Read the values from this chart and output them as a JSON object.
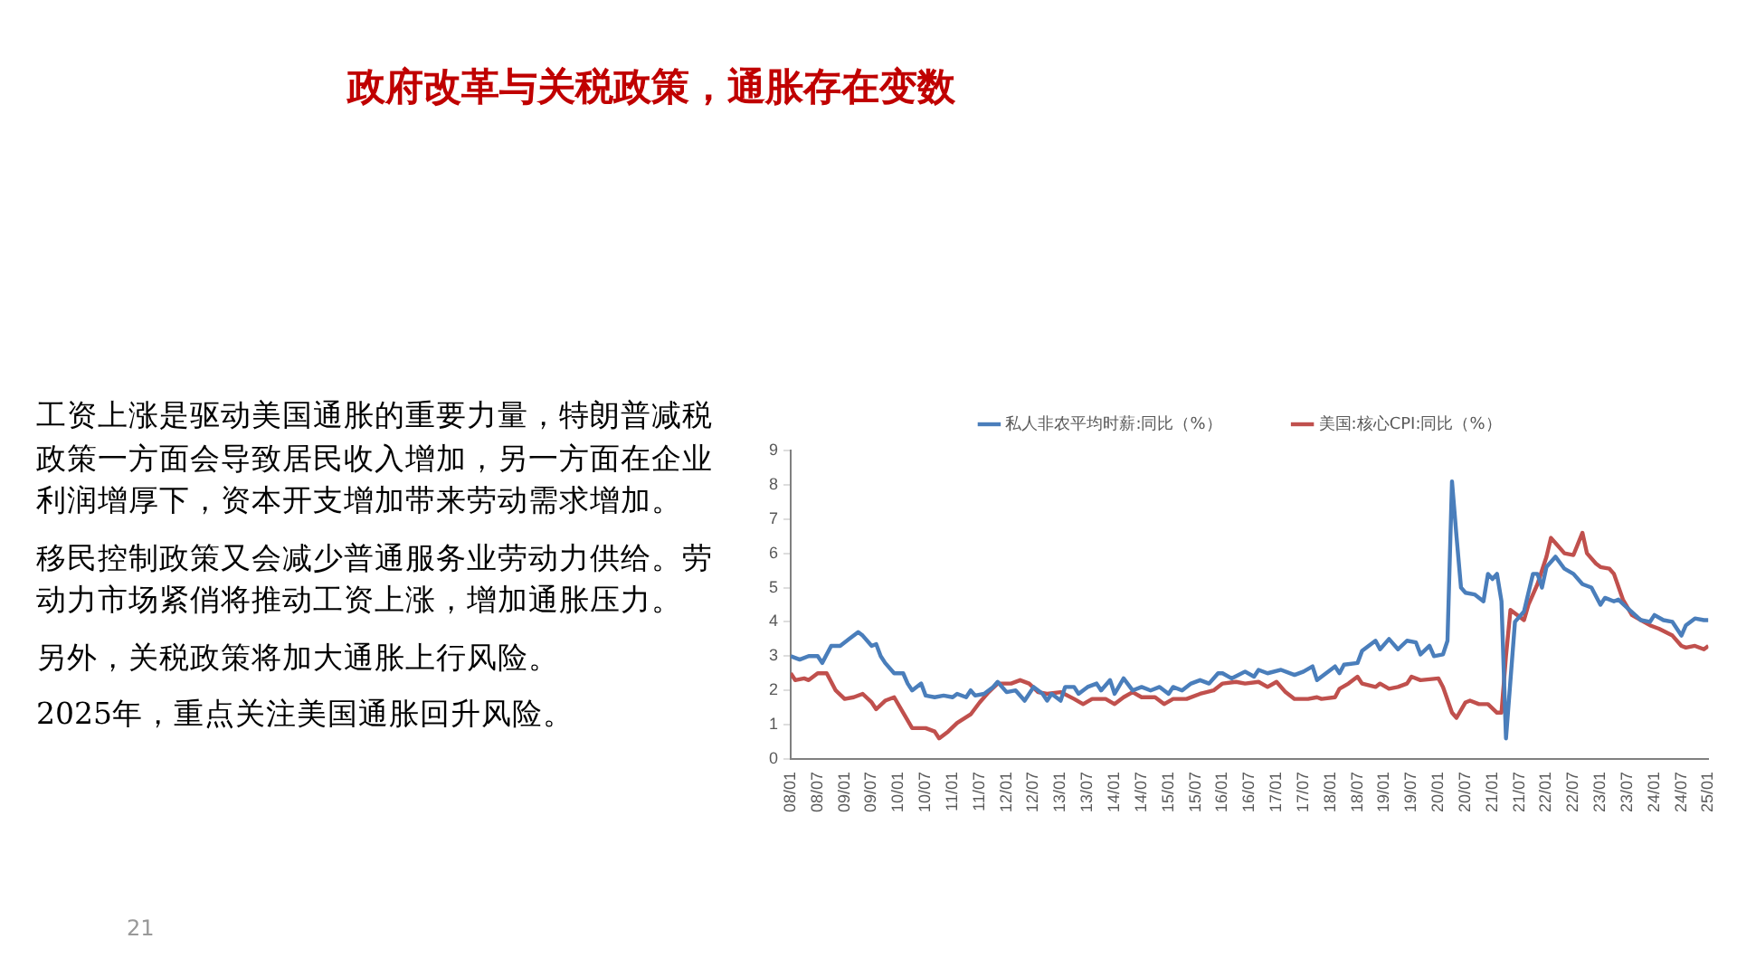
{
  "chart_data": {
    "type": "line",
    "title": "政府改革与关税政策，通胀存在变数",
    "annotations": [
      "工资上涨是驱动美国通胀的重要力量，特朗普减税政策一方面会导致居民收入增加，另一方面在企业利润增厚下，资本开支增加带来劳动需求增加。",
      "移民控制政策又会减少普通服务业劳动力供给。劳动力市场紧俏将推动工资上涨，增加通胀压力。",
      "另外，关税政策将加大通胀上行风险。",
      "2025年，重点关注美国通胀回升风险。",
      "21"
    ],
    "series": [
      {
        "name": "私人非农平均时薪:同比（%）",
        "color": "#4a7ebb",
        "x": [
          "2008-01",
          "2008-03",
          "2008-05",
          "2008-07",
          "2008-08",
          "2008-10",
          "2008-12",
          "2009-02",
          "2009-04",
          "2009-05",
          "2009-07",
          "2009-08",
          "2009-09",
          "2009-10",
          "2009-12",
          "2010-02",
          "2010-03",
          "2010-04",
          "2010-06",
          "2010-07",
          "2010-09",
          "2010-11",
          "2011-01",
          "2011-02",
          "2011-04",
          "2011-05",
          "2011-06",
          "2011-08",
          "2011-10",
          "2011-11",
          "2012-01",
          "2012-03",
          "2012-05",
          "2012-07",
          "2012-09",
          "2012-10",
          "2012-11",
          "2013-01",
          "2013-02",
          "2013-04",
          "2013-05",
          "2013-07",
          "2013-09",
          "2013-10",
          "2013-12",
          "2014-01",
          "2014-03",
          "2014-05",
          "2014-07",
          "2014-09",
          "2014-11",
          "2015-01",
          "2015-02",
          "2015-04",
          "2015-06",
          "2015-08",
          "2015-10",
          "2015-12",
          "2016-01",
          "2016-03",
          "2016-06",
          "2016-08",
          "2016-09",
          "2016-11",
          "2017-02",
          "2017-05",
          "2017-07",
          "2017-09",
          "2017-10",
          "2018-01",
          "2018-02",
          "2018-03",
          "2018-04",
          "2018-07",
          "2018-08",
          "2018-11",
          "2018-12",
          "2019-02",
          "2019-04",
          "2019-06",
          "2019-08",
          "2019-09",
          "2019-11",
          "2019-12",
          "2020-02",
          "2020-03",
          "2020-04",
          "2020-05",
          "2020-06",
          "2020-07",
          "2020-09",
          "2020-11",
          "2020-12",
          "2021-01",
          "2021-02",
          "2021-03",
          "2021-04",
          "2021-06",
          "2021-08",
          "2021-10",
          "2021-11",
          "2021-12",
          "2022-01",
          "2022-03",
          "2022-05",
          "2022-07",
          "2022-09",
          "2022-11",
          "2023-01",
          "2023-02",
          "2023-04",
          "2023-05",
          "2023-07",
          "2023-10",
          "2023-12",
          "2024-01",
          "2024-03",
          "2024-05",
          "2024-07",
          "2024-08",
          "2024-10",
          "2024-12",
          "2025-01"
        ],
        "values": [
          3.0,
          2.9,
          3.0,
          3.0,
          2.8,
          3.3,
          3.3,
          3.5,
          3.7,
          3.6,
          3.3,
          3.35,
          3.0,
          2.8,
          2.5,
          2.5,
          2.2,
          2.0,
          2.2,
          1.85,
          1.8,
          1.85,
          1.8,
          1.9,
          1.8,
          2.0,
          1.85,
          1.9,
          2.1,
          2.25,
          1.95,
          2.0,
          1.7,
          2.1,
          1.9,
          1.7,
          1.9,
          1.7,
          2.1,
          2.1,
          1.9,
          2.1,
          2.2,
          2.0,
          2.3,
          1.9,
          2.35,
          2.0,
          2.1,
          2.0,
          2.1,
          1.9,
          2.1,
          2.0,
          2.2,
          2.3,
          2.2,
          2.5,
          2.5,
          2.35,
          2.55,
          2.4,
          2.6,
          2.5,
          2.6,
          2.45,
          2.55,
          2.7,
          2.3,
          2.6,
          2.7,
          2.5,
          2.75,
          2.8,
          3.15,
          3.45,
          3.2,
          3.5,
          3.2,
          3.45,
          3.4,
          3.05,
          3.3,
          3.0,
          3.05,
          3.45,
          8.1,
          6.5,
          5.0,
          4.85,
          4.8,
          4.6,
          5.4,
          5.25,
          5.4,
          4.6,
          0.6,
          4.0,
          4.3,
          5.4,
          5.4,
          5.0,
          5.6,
          5.9,
          5.55,
          5.4,
          5.1,
          5.0,
          4.5,
          4.7,
          4.6,
          4.65,
          4.4,
          4.05,
          4.0,
          4.2,
          4.05,
          4.0,
          3.6,
          3.9,
          4.1,
          4.05,
          4.05
        ]
      },
      {
        "name": "美国:核心CPI:同比（%）",
        "color": "#c0504d",
        "x": [
          "2008-01",
          "2008-02",
          "2008-04",
          "2008-05",
          "2008-07",
          "2008-09",
          "2008-11",
          "2009-01",
          "2009-03",
          "2009-05",
          "2009-07",
          "2009-08",
          "2009-10",
          "2009-12",
          "2010-02",
          "2010-04",
          "2010-07",
          "2010-09",
          "2010-10",
          "2010-12",
          "2011-02",
          "2011-05",
          "2011-07",
          "2011-09",
          "2011-11",
          "2012-02",
          "2012-04",
          "2012-06",
          "2012-08",
          "2012-10",
          "2013-01",
          "2013-04",
          "2013-06",
          "2013-08",
          "2013-11",
          "2014-01",
          "2014-03",
          "2014-05",
          "2014-07",
          "2014-09",
          "2014-10",
          "2014-12",
          "2015-02",
          "2015-05",
          "2015-08",
          "2015-11",
          "2016-01",
          "2016-04",
          "2016-06",
          "2016-09",
          "2016-11",
          "2017-01",
          "2017-03",
          "2017-05",
          "2017-08",
          "2017-10",
          "2017-11",
          "2018-02",
          "2018-03",
          "2018-05",
          "2018-07",
          "2018-08",
          "2018-11",
          "2018-12",
          "2019-02",
          "2019-04",
          "2019-06",
          "2019-07",
          "2019-09",
          "2020-01",
          "2020-02",
          "2020-04",
          "2020-05",
          "2020-07",
          "2020-08",
          "2020-10",
          "2020-12",
          "2021-02",
          "2021-03",
          "2021-04",
          "2021-05",
          "2021-06",
          "2021-08",
          "2021-09",
          "2021-11",
          "2022-01",
          "2022-02",
          "2022-03",
          "2022-05",
          "2022-07",
          "2022-09",
          "2022-10",
          "2022-12",
          "2023-01",
          "2023-03",
          "2023-04",
          "2023-06",
          "2023-08",
          "2023-10",
          "2023-12",
          "2024-02",
          "2024-05",
          "2024-07",
          "2024-08",
          "2024-10",
          "2024-12",
          "2025-01"
        ],
        "values": [
          2.5,
          2.3,
          2.35,
          2.3,
          2.5,
          2.5,
          2.0,
          1.75,
          1.8,
          1.9,
          1.65,
          1.45,
          1.7,
          1.8,
          1.35,
          0.9,
          0.9,
          0.8,
          0.6,
          0.8,
          1.05,
          1.3,
          1.65,
          1.95,
          2.2,
          2.2,
          2.3,
          2.2,
          1.95,
          1.9,
          1.95,
          1.75,
          1.6,
          1.75,
          1.75,
          1.6,
          1.8,
          1.95,
          1.8,
          1.8,
          1.8,
          1.6,
          1.75,
          1.75,
          1.9,
          2.0,
          2.2,
          2.25,
          2.2,
          2.25,
          2.1,
          2.25,
          1.95,
          1.75,
          1.75,
          1.8,
          1.75,
          1.8,
          2.05,
          2.2,
          2.4,
          2.2,
          2.1,
          2.2,
          2.05,
          2.1,
          2.2,
          2.4,
          2.3,
          2.35,
          2.1,
          1.35,
          1.2,
          1.65,
          1.7,
          1.6,
          1.6,
          1.35,
          1.35,
          3.0,
          4.35,
          4.25,
          4.05,
          4.5,
          5.1,
          5.9,
          6.45,
          6.3,
          6.0,
          5.95,
          6.6,
          6.0,
          5.7,
          5.6,
          5.55,
          5.4,
          4.65,
          4.2,
          4.05,
          3.9,
          3.8,
          3.6,
          3.3,
          3.25,
          3.3,
          3.2,
          3.3
        ]
      }
    ],
    "xlim": [
      "2008-01",
      "2025-01"
    ],
    "xticks": [
      {
        "value": "2008-01",
        "label": "08/01"
      },
      {
        "value": "2008-07",
        "label": "08/07"
      },
      {
        "value": "2009-01",
        "label": "09/01"
      },
      {
        "value": "2009-07",
        "label": "09/07"
      },
      {
        "value": "2010-01",
        "label": "10/01"
      },
      {
        "value": "2010-07",
        "label": "10/07"
      },
      {
        "value": "2011-01",
        "label": "11/01"
      },
      {
        "value": "2011-07",
        "label": "11/07"
      },
      {
        "value": "2012-01",
        "label": "12/01"
      },
      {
        "value": "2012-07",
        "label": "12/07"
      },
      {
        "value": "2013-01",
        "label": "13/01"
      },
      {
        "value": "2013-07",
        "label": "13/07"
      },
      {
        "value": "2014-01",
        "label": "14/01"
      },
      {
        "value": "2014-07",
        "label": "14/07"
      },
      {
        "value": "2015-01",
        "label": "15/01"
      },
      {
        "value": "2015-07",
        "label": "15/07"
      },
      {
        "value": "2016-01",
        "label": "16/01"
      },
      {
        "value": "2016-07",
        "label": "16/07"
      },
      {
        "value": "2017-01",
        "label": "17/01"
      },
      {
        "value": "2017-07",
        "label": "17/07"
      },
      {
        "value": "2018-01",
        "label": "18/01"
      },
      {
        "value": "2018-07",
        "label": "18/07"
      },
      {
        "value": "2019-01",
        "label": "19/01"
      },
      {
        "value": "2019-07",
        "label": "19/07"
      },
      {
        "value": "2020-01",
        "label": "20/01"
      },
      {
        "value": "2020-07",
        "label": "20/07"
      },
      {
        "value": "2021-01",
        "label": "21/01"
      },
      {
        "value": "2021-07",
        "label": "21/07"
      },
      {
        "value": "2022-01",
        "label": "22/01"
      },
      {
        "value": "2022-07",
        "label": "22/07"
      },
      {
        "value": "2023-01",
        "label": "23/01"
      },
      {
        "value": "2023-07",
        "label": "23/07"
      },
      {
        "value": "2024-01",
        "label": "24/01"
      },
      {
        "value": "2024-07",
        "label": "24/07"
      },
      {
        "value": "2025-01",
        "label": "25/01"
      }
    ],
    "ylim": [
      0,
      9
    ],
    "yticks": [
      0,
      1,
      2,
      3,
      4,
      5,
      6,
      7,
      8,
      9
    ],
    "grid": false,
    "legend": "top",
    "marker": "none",
    "line_style": "solid"
  }
}
